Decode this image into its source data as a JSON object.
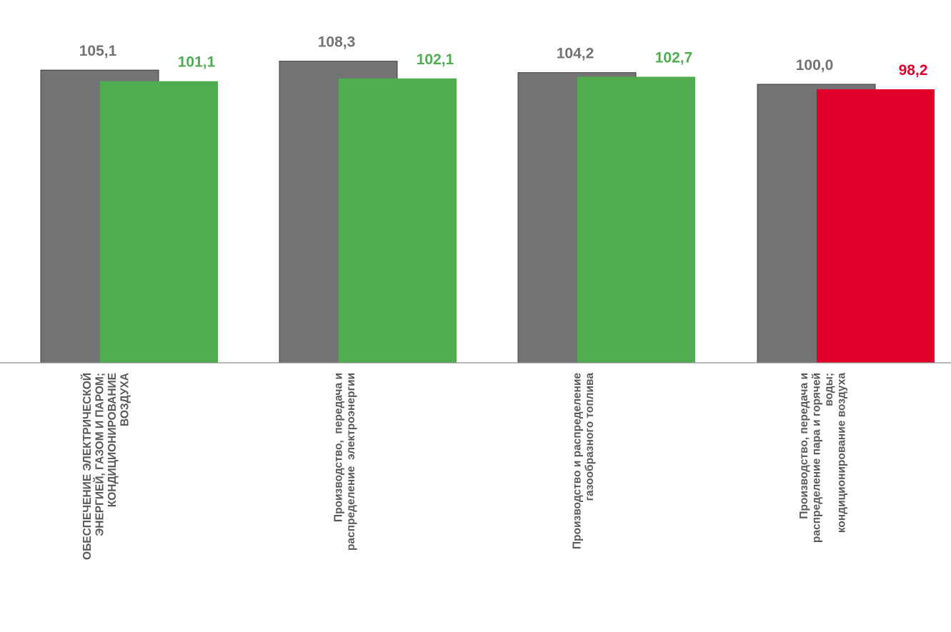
{
  "chart_data": {
    "type": "bar",
    "categories": [
      [
        "ОБЕСПЕЧЕНИЕ ЭЛЕКТРИЧЕСКОЙ",
        "ЭНЕРГИЕЙ, ГАЗОМ И ПАРОМ;",
        "КОНДИЦИОНИРОВАНИЕ",
        "ВОЗДУХА"
      ],
      [
        "Производство,  передача и",
        "распределение  электроэнергии"
      ],
      [
        "Производство и распределение",
        "газообразного топлива"
      ],
      [
        "Производство, передача и",
        "распределение пара и горячей",
        "воды;",
        "кондиционирование воздуха"
      ]
    ],
    "series": [
      {
        "values": [
          105.1,
          108.3,
          104.2,
          100.0
        ],
        "labels": [
          "105,1",
          "108,3",
          "104,2",
          "100,0"
        ],
        "color": "#737373",
        "label_color": "#737373"
      },
      {
        "values": [
          101.1,
          102.1,
          102.7,
          98.2
        ],
        "labels": [
          "101,1",
          "102,1",
          "102,7",
          "98,2"
        ],
        "colors": [
          "#4fad50",
          "#4fad50",
          "#4fad50",
          "#e2002b"
        ],
        "label_colors": [
          "#4fad50",
          "#4fad50",
          "#4fad50",
          "#e2002b"
        ]
      }
    ],
    "title": "",
    "xlabel": "",
    "ylabel": "",
    "grid": false,
    "legend": "none",
    "axis_line_color": "#8c8c8c"
  }
}
